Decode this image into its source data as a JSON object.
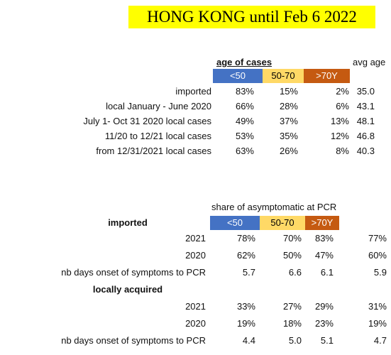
{
  "header": {
    "title": "HONG KONG until Feb 6 2022"
  },
  "table1": {
    "group_label": "age of cases",
    "columns": [
      "<50",
      "50-70",
      ">70Y"
    ],
    "extra_column": "avg age",
    "rows": [
      {
        "label": "imported",
        "cells": [
          "83%",
          "15%",
          "2%",
          "35.0"
        ]
      },
      {
        "label": "local January - June 2020",
        "cells": [
          "66%",
          "28%",
          "6%",
          "43.1"
        ]
      },
      {
        "label": "July 1- Oct 31 2020 local cases",
        "cells": [
          "49%",
          "37%",
          "13%",
          "48.1"
        ]
      },
      {
        "label": "11/20 to 12/21 local cases",
        "cells": [
          "53%",
          "35%",
          "12%",
          "46.8"
        ]
      },
      {
        "label": "from 12/31/2021 local cases",
        "cells": [
          "63%",
          "26%",
          "8%",
          "40.3"
        ]
      }
    ]
  },
  "table2": {
    "group_label": "share of asymptomatic at PCR",
    "columns": [
      "<50",
      "50-70",
      ">70Y"
    ],
    "sections": [
      {
        "title": "imported",
        "rows": [
          {
            "label": "2021",
            "cells": [
              "78%",
              "70%",
              "83%",
              "77%"
            ]
          },
          {
            "label": "2020",
            "cells": [
              "62%",
              "50%",
              "47%",
              "60%"
            ]
          },
          {
            "label": "nb days onset of symptoms to PCR",
            "cells": [
              "5.7",
              "6.6",
              "6.1",
              "5.9"
            ]
          }
        ]
      },
      {
        "title": "locally acquired",
        "rows": [
          {
            "label": "2021",
            "cells": [
              "33%",
              "27%",
              "29%",
              "31%"
            ]
          },
          {
            "label": "2020",
            "cells": [
              "19%",
              "18%",
              "23%",
              "19%"
            ]
          },
          {
            "label": "nb days onset of symptoms to PCR",
            "cells": [
              "4.4",
              "5.0",
              "5.1",
              "4.7"
            ]
          }
        ]
      }
    ]
  }
}
